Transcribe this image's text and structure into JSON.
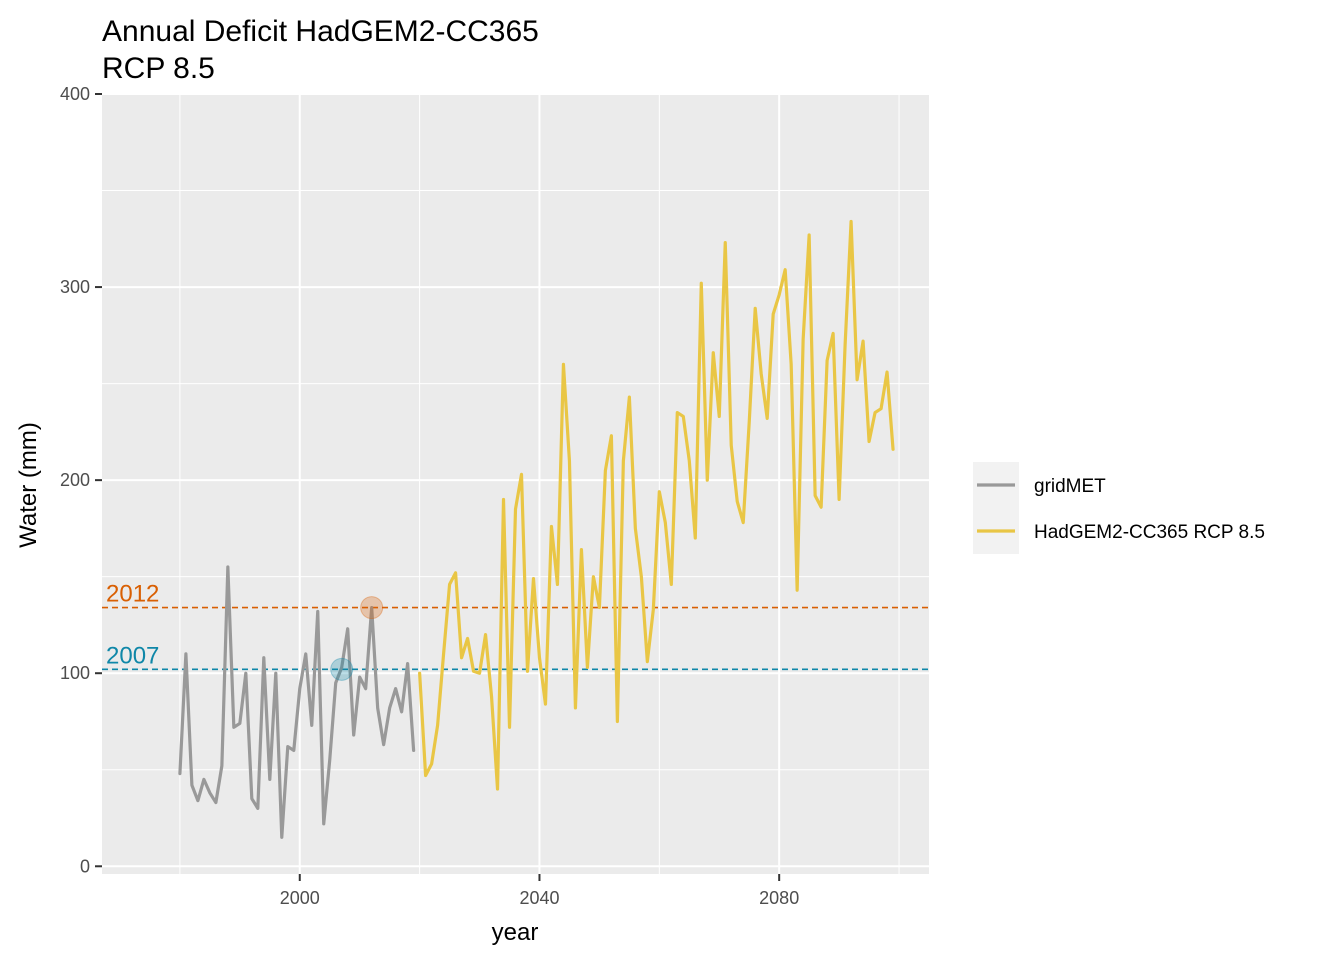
{
  "chart_data": {
    "type": "line",
    "title": "Annual Deficit HadGEM2-CC365",
    "subtitle": "RCP 8.5",
    "xlabel": "year",
    "ylabel": "Water (mm)",
    "xlim": [
      1967,
      2105
    ],
    "ylim": [
      -4,
      400
    ],
    "x_ticks": [
      2000,
      2040,
      2080
    ],
    "y_ticks": [
      0,
      100,
      200,
      300,
      400
    ],
    "grid": true,
    "legend_position": "right",
    "series": [
      {
        "name": "gridMET",
        "color": "#999999",
        "x": [
          1980,
          1981,
          1982,
          1983,
          1984,
          1985,
          1986,
          1987,
          1988,
          1989,
          1990,
          1991,
          1992,
          1993,
          1994,
          1995,
          1996,
          1997,
          1998,
          1999,
          2000,
          2001,
          2002,
          2003,
          2004,
          2005,
          2006,
          2007,
          2008,
          2009,
          2010,
          2011,
          2012,
          2013,
          2014,
          2015,
          2016,
          2017,
          2018,
          2019
        ],
        "values": [
          48,
          110,
          42,
          34,
          45,
          38,
          33,
          52,
          155,
          72,
          74,
          100,
          35,
          30,
          108,
          45,
          100,
          15,
          62,
          60,
          92,
          110,
          73,
          132,
          22,
          55,
          95,
          103,
          123,
          68,
          98,
          92,
          134,
          82,
          63,
          82,
          92,
          80,
          105,
          60
        ]
      },
      {
        "name": "HadGEM2-CC365 RCP 8.5",
        "color": "#E9C645",
        "x": [
          2020,
          2021,
          2022,
          2023,
          2024,
          2025,
          2026,
          2027,
          2028,
          2029,
          2030,
          2031,
          2032,
          2033,
          2034,
          2035,
          2036,
          2037,
          2038,
          2039,
          2040,
          2041,
          2042,
          2043,
          2044,
          2045,
          2046,
          2047,
          2048,
          2049,
          2050,
          2051,
          2052,
          2053,
          2054,
          2055,
          2056,
          2057,
          2058,
          2059,
          2060,
          2061,
          2062,
          2063,
          2064,
          2065,
          2066,
          2067,
          2068,
          2069,
          2070,
          2071,
          2072,
          2073,
          2074,
          2075,
          2076,
          2077,
          2078,
          2079,
          2080,
          2081,
          2082,
          2083,
          2084,
          2085,
          2086,
          2087,
          2088,
          2089,
          2090,
          2091,
          2092,
          2093,
          2094,
          2095,
          2096,
          2097,
          2098,
          2099
        ],
        "values": [
          100,
          47,
          53,
          73,
          110,
          146,
          152,
          108,
          118,
          101,
          100,
          120,
          88,
          40,
          190,
          72,
          185,
          203,
          101,
          149,
          108,
          84,
          176,
          146,
          260,
          210,
          82,
          164,
          103,
          150,
          134,
          205,
          223,
          75,
          210,
          243,
          175,
          150,
          106,
          133,
          194,
          178,
          146,
          235,
          233,
          210,
          170,
          302,
          200,
          266,
          233,
          323,
          218,
          189,
          178,
          230,
          289,
          255,
          232,
          286,
          296,
          309,
          260,
          143,
          273,
          327,
          192,
          186,
          262,
          276,
          190,
          270,
          334,
          252,
          272,
          220,
          235,
          237,
          256,
          216
        ]
      }
    ],
    "reference_lines": [
      {
        "label": "2012",
        "value": 134,
        "color": "#D95F02",
        "marker_x": 2012
      },
      {
        "label": "2007",
        "value": 102,
        "color": "#0F87A8",
        "marker_x": 2007
      }
    ]
  }
}
